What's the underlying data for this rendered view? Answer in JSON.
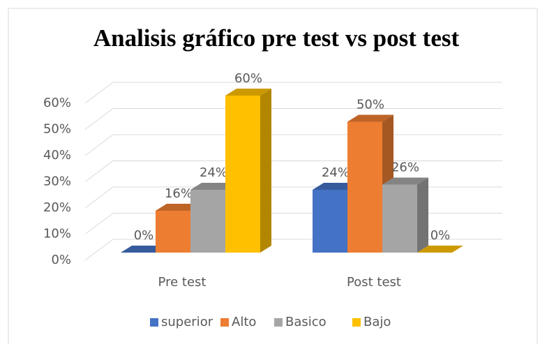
{
  "chart_data": {
    "type": "bar3d",
    "title": "Analisis gráfico pre test vs post test",
    "categories": [
      "Pre test",
      "Post test"
    ],
    "series": [
      {
        "name": "superior",
        "color": "#4472c4",
        "values": [
          0,
          24
        ],
        "value_labels": [
          "0%",
          "24%"
        ]
      },
      {
        "name": "Alto",
        "color": "#ed7d31",
        "values": [
          16,
          50
        ],
        "value_labels": [
          "16%",
          "50%"
        ]
      },
      {
        "name": "Basico",
        "color": "#a5a5a5",
        "values": [
          24,
          26
        ],
        "value_labels": [
          "24%",
          "26%"
        ]
      },
      {
        "name": "Bajo",
        "color": "#ffc000",
        "values": [
          60,
          0
        ],
        "value_labels": [
          "60%",
          "0%"
        ]
      }
    ],
    "ylim": [
      0,
      60
    ],
    "yticks": [
      {
        "value": 0,
        "label": "0%"
      },
      {
        "value": 10,
        "label": "10%"
      },
      {
        "value": 20,
        "label": "20%"
      },
      {
        "value": 30,
        "label": "30%"
      },
      {
        "value": 40,
        "label": "40%"
      },
      {
        "value": 50,
        "label": "50%"
      },
      {
        "value": 60,
        "label": "60%"
      }
    ],
    "grid": true,
    "legend": "bottom"
  }
}
